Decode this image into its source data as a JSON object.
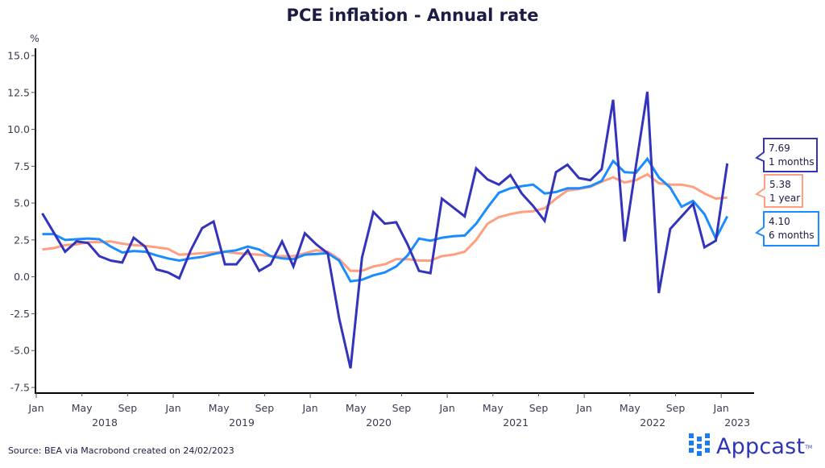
{
  "chart_data": {
    "type": "line",
    "title": "PCE inflation - Annual rate",
    "ylabel": "%",
    "xlabel": "",
    "ylim": [
      -7.5,
      15.0
    ],
    "yticks": [
      "15.0",
      "12.5",
      "10.0",
      "7.5",
      "5.0",
      "2.5",
      "0.0",
      "-2.5",
      "-5.0",
      "-7.5"
    ],
    "ytick_values": [
      15.0,
      12.5,
      10.0,
      7.5,
      5.0,
      2.5,
      0.0,
      -2.5,
      -5.0,
      -7.5
    ],
    "x_start": "Jan 2018",
    "x_end": "Jan 2023",
    "x_frequency": "monthly",
    "xticks": [
      {
        "label": "Jan",
        "month_index": 0
      },
      {
        "label": "May",
        "month_index": 4
      },
      {
        "label": "Sep",
        "month_index": 8
      },
      {
        "label": "Jan",
        "month_index": 12
      },
      {
        "label": "May",
        "month_index": 16
      },
      {
        "label": "Sep",
        "month_index": 20
      },
      {
        "label": "Jan",
        "month_index": 24
      },
      {
        "label": "May",
        "month_index": 28
      },
      {
        "label": "Sep",
        "month_index": 32
      },
      {
        "label": "Jan",
        "month_index": 36
      },
      {
        "label": "May",
        "month_index": 40
      },
      {
        "label": "Sep",
        "month_index": 44
      },
      {
        "label": "Jan",
        "month_index": 48
      },
      {
        "label": "May",
        "month_index": 52
      },
      {
        "label": "Sep",
        "month_index": 56
      },
      {
        "label": "Jan",
        "month_index": 60
      }
    ],
    "year_labels": [
      {
        "label": "2018",
        "month_index": 6
      },
      {
        "label": "2019",
        "month_index": 18
      },
      {
        "label": "2020",
        "month_index": 30
      },
      {
        "label": "2021",
        "month_index": 42
      },
      {
        "label": "2022",
        "month_index": 54
      },
      {
        "label": "2023",
        "month_index": 60
      }
    ],
    "grid": false,
    "legend": "end-of-line callouts on right",
    "series": [
      {
        "name": "1 months",
        "color": "#3333bb",
        "last_value_label": "7.69",
        "values": [
          4.3,
          3.0,
          1.7,
          2.4,
          2.3,
          1.4,
          1.1,
          0.97,
          2.65,
          2.05,
          0.5,
          0.3,
          -0.1,
          1.8,
          3.3,
          3.75,
          0.85,
          0.85,
          1.8,
          0.4,
          0.85,
          2.4,
          0.7,
          2.95,
          2.2,
          1.6,
          -2.8,
          -6.2,
          1.3,
          4.4,
          3.6,
          3.7,
          2.2,
          0.4,
          0.25,
          5.3,
          4.7,
          4.1,
          7.35,
          6.6,
          6.25,
          6.9,
          5.65,
          4.8,
          3.8,
          7.1,
          7.6,
          6.7,
          6.55,
          7.3,
          12.0,
          2.4,
          7.5,
          12.55,
          -1.1,
          3.25,
          4.1,
          4.95,
          2.0,
          2.45,
          7.69
        ]
      },
      {
        "name": "1 year",
        "color": "#ff9f80",
        "last_value_label": "5.38",
        "values": [
          1.85,
          1.95,
          2.15,
          2.2,
          2.35,
          2.35,
          2.4,
          2.25,
          2.15,
          2.1,
          2.0,
          1.9,
          1.5,
          1.55,
          1.6,
          1.65,
          1.7,
          1.6,
          1.55,
          1.5,
          1.4,
          1.4,
          1.4,
          1.6,
          1.8,
          1.7,
          1.2,
          0.4,
          0.4,
          0.7,
          0.85,
          1.2,
          1.2,
          1.1,
          1.1,
          1.4,
          1.5,
          1.7,
          2.5,
          3.6,
          4.05,
          4.25,
          4.4,
          4.45,
          4.65,
          5.3,
          5.85,
          5.95,
          6.1,
          6.45,
          6.75,
          6.4,
          6.55,
          6.95,
          6.35,
          6.25,
          6.25,
          6.1,
          5.65,
          5.3,
          5.38
        ]
      },
      {
        "name": "6 months",
        "color": "#1a8cff",
        "last_value_label": "4.10",
        "values": [
          2.9,
          2.9,
          2.5,
          2.55,
          2.6,
          2.55,
          2.05,
          1.65,
          1.75,
          1.7,
          1.45,
          1.25,
          1.1,
          1.25,
          1.35,
          1.55,
          1.7,
          1.8,
          2.05,
          1.85,
          1.4,
          1.25,
          1.2,
          1.5,
          1.55,
          1.6,
          1.1,
          -0.3,
          -0.2,
          0.1,
          0.3,
          0.7,
          1.45,
          2.6,
          2.45,
          2.65,
          2.75,
          2.8,
          3.6,
          4.7,
          5.7,
          6.0,
          6.15,
          6.25,
          5.65,
          5.75,
          6.0,
          6.0,
          6.15,
          6.5,
          7.85,
          7.1,
          7.05,
          8.0,
          6.75,
          6.05,
          4.75,
          5.15,
          4.25,
          2.6,
          4.1
        ]
      }
    ],
    "callouts": [
      {
        "value": "7.69",
        "label": "1 months",
        "color": "#3333bb"
      },
      {
        "value": "5.38",
        "label": "1 year",
        "color": "#ff9f80"
      },
      {
        "value": "4.10",
        "label": "6 months",
        "color": "#1a8cff"
      }
    ]
  },
  "footer": {
    "source": "Source: BEA via Macrobond created on 24/02/2023",
    "logo_text": "Appcast",
    "logo_tm": "TM"
  }
}
